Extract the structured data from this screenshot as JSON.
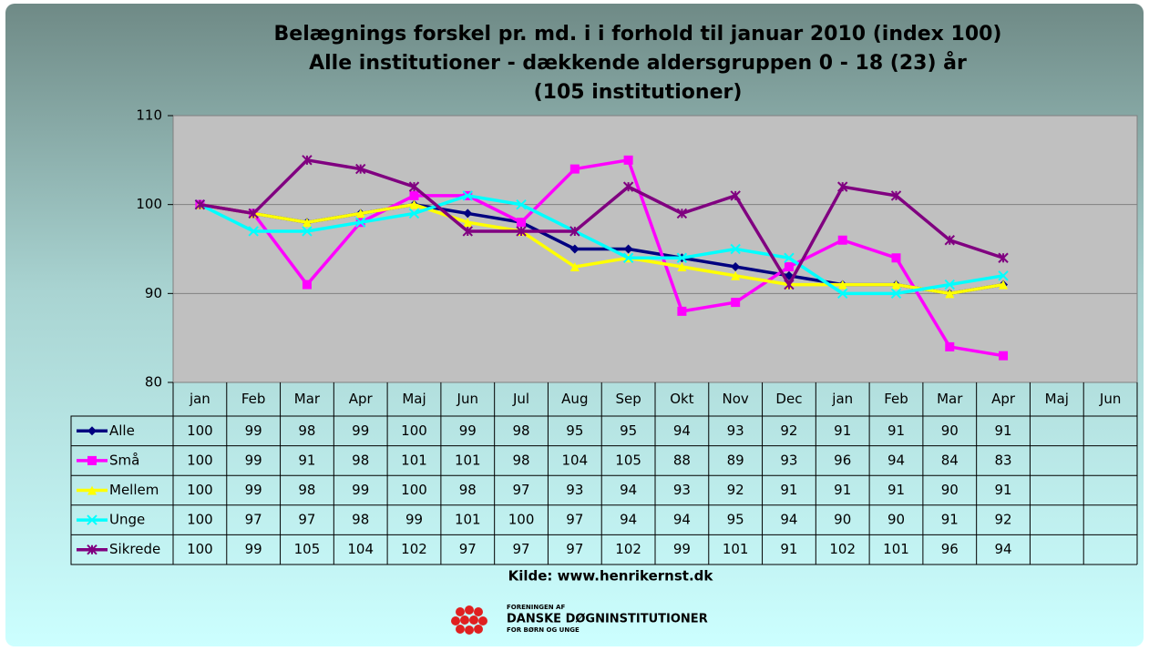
{
  "chart_data": {
    "type": "line",
    "title": [
      "Belægnings forskel pr. md. i i forhold til januar 2010 (index 100)",
      "Alle institutioner - dækkende aldersgruppen 0 - 18 (23) år",
      "(105 institutioner)"
    ],
    "categories": [
      "jan",
      "Feb",
      "Mar",
      "Apr",
      "Maj",
      "Jun",
      "Jul",
      "Aug",
      "Sep",
      "Okt",
      "Nov",
      "Dec",
      "jan",
      "Feb",
      "Mar",
      "Apr",
      "Maj",
      "Jun"
    ],
    "series": [
      {
        "name": "Alle",
        "color": "#000080",
        "marker": "diamond",
        "values": [
          100,
          99,
          98,
          99,
          100,
          99,
          98,
          95,
          95,
          94,
          93,
          92,
          91,
          91,
          90,
          91,
          null,
          null
        ]
      },
      {
        "name": "Små",
        "color": "#ff00ff",
        "marker": "square",
        "values": [
          100,
          99,
          91,
          98,
          101,
          101,
          98,
          104,
          105,
          88,
          89,
          93,
          96,
          94,
          84,
          83,
          null,
          null
        ]
      },
      {
        "name": "Mellem",
        "color": "#ffff00",
        "marker": "triangle",
        "values": [
          100,
          99,
          98,
          99,
          100,
          98,
          97,
          93,
          94,
          93,
          92,
          91,
          91,
          91,
          90,
          91,
          null,
          null
        ]
      },
      {
        "name": "Unge",
        "color": "#00ffff",
        "marker": "x",
        "values": [
          100,
          97,
          97,
          98,
          99,
          101,
          100,
          97,
          94,
          94,
          95,
          94,
          90,
          90,
          91,
          92,
          null,
          null
        ]
      },
      {
        "name": "Sikrede",
        "color": "#800080",
        "marker": "star",
        "values": [
          100,
          99,
          105,
          104,
          102,
          97,
          97,
          97,
          102,
          99,
          101,
          91,
          102,
          101,
          96,
          94,
          null,
          null
        ]
      }
    ],
    "ylim": [
      80,
      110
    ],
    "yticks": [
      80,
      90,
      100,
      110
    ],
    "grid": true,
    "source": "Kilde: www.henrikernst.dk",
    "logo": [
      "FORENINGEN AF",
      "DANSKE DØGNINSTITUTIONER",
      "FOR BØRN OG UNGE"
    ]
  }
}
